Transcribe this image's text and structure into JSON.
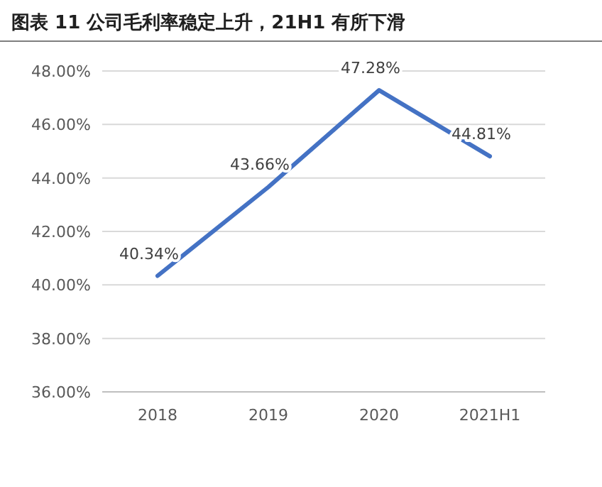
{
  "chart_data": {
    "type": "line",
    "title": "图表 11 公司毛利率稳定上升，21H1 有所下滑",
    "categories": [
      "2018",
      "2019",
      "2020",
      "2021H1"
    ],
    "series": [
      {
        "color": "#4472c4",
        "values": [
          40.34,
          43.66,
          47.28,
          44.81
        ]
      }
    ],
    "value_labels": [
      "40.34%",
      "43.66%",
      "47.28%",
      "44.81%"
    ],
    "ylim": [
      36,
      48
    ],
    "yticks": [
      {
        "value": 36,
        "label": "36.00%"
      },
      {
        "value": 38,
        "label": "38.00%"
      },
      {
        "value": 40,
        "label": "40.00%"
      },
      {
        "value": 42,
        "label": "42.00%"
      },
      {
        "value": 44,
        "label": "44.00%"
      },
      {
        "value": 46,
        "label": "46.00%"
      },
      {
        "value": 48,
        "label": "48.00%"
      }
    ],
    "grid": "y",
    "marker": "none",
    "line_style": "solid"
  }
}
